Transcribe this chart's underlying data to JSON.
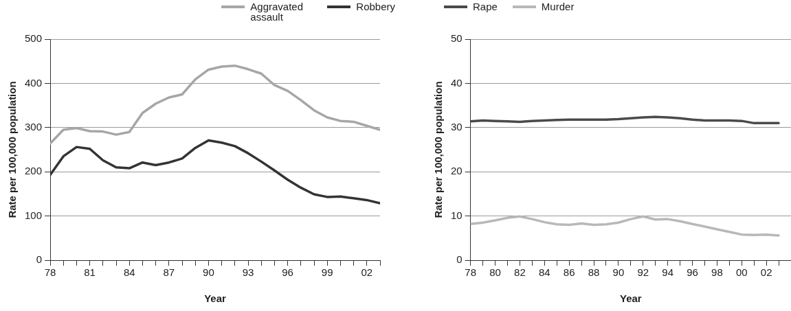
{
  "chart_data": [
    {
      "type": "line",
      "xlabel": "Year",
      "ylabel": "Rate per 100,000 population",
      "x": [
        1978,
        1979,
        1980,
        1981,
        1982,
        1983,
        1984,
        1985,
        1986,
        1987,
        1988,
        1989,
        1990,
        1991,
        1992,
        1993,
        1994,
        1995,
        1996,
        1997,
        1998,
        1999,
        2000,
        2001,
        2002,
        2003
      ],
      "series": [
        {
          "name": "Aggravated assault",
          "color": "#a6a6a6",
          "values": [
            264,
            295,
            299,
            292,
            291,
            284,
            290,
            333,
            354,
            368,
            375,
            409,
            431,
            438,
            440,
            432,
            422,
            396,
            383,
            362,
            339,
            323,
            315,
            313,
            304,
            295
          ]
        },
        {
          "name": "Robbery",
          "color": "#333333",
          "values": [
            193,
            235,
            256,
            252,
            226,
            210,
            208,
            221,
            215,
            221,
            230,
            254,
            271,
            266,
            258,
            242,
            223,
            203,
            182,
            164,
            149,
            143,
            144,
            140,
            136,
            129
          ]
        }
      ],
      "xlim": [
        1978,
        2003
      ],
      "xticks": [
        {
          "value": 1978,
          "label": "78"
        },
        {
          "value": 1979,
          "label": null
        },
        {
          "value": 1980,
          "label": null
        },
        {
          "value": 1981,
          "label": "81"
        },
        {
          "value": 1982,
          "label": null
        },
        {
          "value": 1983,
          "label": null
        },
        {
          "value": 1984,
          "label": "84"
        },
        {
          "value": 1985,
          "label": null
        },
        {
          "value": 1986,
          "label": null
        },
        {
          "value": 1987,
          "label": "87"
        },
        {
          "value": 1988,
          "label": null
        },
        {
          "value": 1989,
          "label": null
        },
        {
          "value": 1990,
          "label": "90"
        },
        {
          "value": 1991,
          "label": null
        },
        {
          "value": 1992,
          "label": null
        },
        {
          "value": 1993,
          "label": "93"
        },
        {
          "value": 1994,
          "label": null
        },
        {
          "value": 1995,
          "label": null
        },
        {
          "value": 1996,
          "label": "96"
        },
        {
          "value": 1997,
          "label": null
        },
        {
          "value": 1998,
          "label": null
        },
        {
          "value": 1999,
          "label": "99"
        },
        {
          "value": 2000,
          "label": null
        },
        {
          "value": 2001,
          "label": null
        },
        {
          "value": 2002,
          "label": "02"
        },
        {
          "value": 2003,
          "label": null
        }
      ],
      "ylim": [
        0,
        500
      ],
      "yticks": [
        0,
        100,
        200,
        300,
        400,
        500
      ],
      "grid": "y",
      "legend": "top",
      "marker": "none",
      "line_style": "solid"
    },
    {
      "type": "line",
      "xlabel": "Year",
      "ylabel": "Rate per 100,000 population",
      "x": [
        1978,
        1979,
        1980,
        1981,
        1982,
        1983,
        1984,
        1985,
        1986,
        1987,
        1988,
        1989,
        1990,
        1991,
        1992,
        1993,
        1994,
        1995,
        1996,
        1997,
        1998,
        1999,
        2000,
        2001,
        2002,
        2003
      ],
      "series": [
        {
          "name": "Rape",
          "color": "#4a4a4a",
          "values": [
            31.4,
            31.6,
            31.5,
            31.4,
            31.3,
            31.5,
            31.6,
            31.7,
            31.8,
            31.8,
            31.8,
            31.8,
            31.9,
            32.1,
            32.3,
            32.4,
            32.3,
            32.1,
            31.8,
            31.6,
            31.6,
            31.6,
            31.5,
            31.0,
            31.0,
            31.0
          ]
        },
        {
          "name": "Murder",
          "color": "#b8b8b8",
          "values": [
            8.2,
            8.5,
            9.0,
            9.6,
            9.9,
            9.3,
            8.6,
            8.1,
            8.0,
            8.3,
            8.0,
            8.1,
            8.5,
            9.3,
            9.9,
            9.2,
            9.3,
            8.8,
            8.2,
            7.6,
            7.0,
            6.4,
            5.8,
            5.7,
            5.8,
            5.6
          ]
        }
      ],
      "xlim": [
        1978,
        2004
      ],
      "xticks": [
        {
          "value": 1978,
          "label": "78"
        },
        {
          "value": 1979,
          "label": null
        },
        {
          "value": 1980,
          "label": "80"
        },
        {
          "value": 1981,
          "label": null
        },
        {
          "value": 1982,
          "label": "82"
        },
        {
          "value": 1983,
          "label": null
        },
        {
          "value": 1984,
          "label": "84"
        },
        {
          "value": 1985,
          "label": null
        },
        {
          "value": 1986,
          "label": "86"
        },
        {
          "value": 1987,
          "label": null
        },
        {
          "value": 1988,
          "label": "88"
        },
        {
          "value": 1989,
          "label": null
        },
        {
          "value": 1990,
          "label": "90"
        },
        {
          "value": 1991,
          "label": null
        },
        {
          "value": 1992,
          "label": "92"
        },
        {
          "value": 1993,
          "label": null
        },
        {
          "value": 1994,
          "label": "94"
        },
        {
          "value": 1995,
          "label": null
        },
        {
          "value": 1996,
          "label": "96"
        },
        {
          "value": 1997,
          "label": null
        },
        {
          "value": 1998,
          "label": "98"
        },
        {
          "value": 1999,
          "label": null
        },
        {
          "value": 2000,
          "label": "00"
        },
        {
          "value": 2001,
          "label": null
        },
        {
          "value": 2002,
          "label": "02"
        },
        {
          "value": 2003,
          "label": null
        }
      ],
      "ylim": [
        0,
        50
      ],
      "yticks": [
        0,
        10,
        20,
        30,
        40,
        50
      ],
      "grid": "y",
      "legend": "top",
      "marker": "none",
      "line_style": "solid"
    }
  ]
}
